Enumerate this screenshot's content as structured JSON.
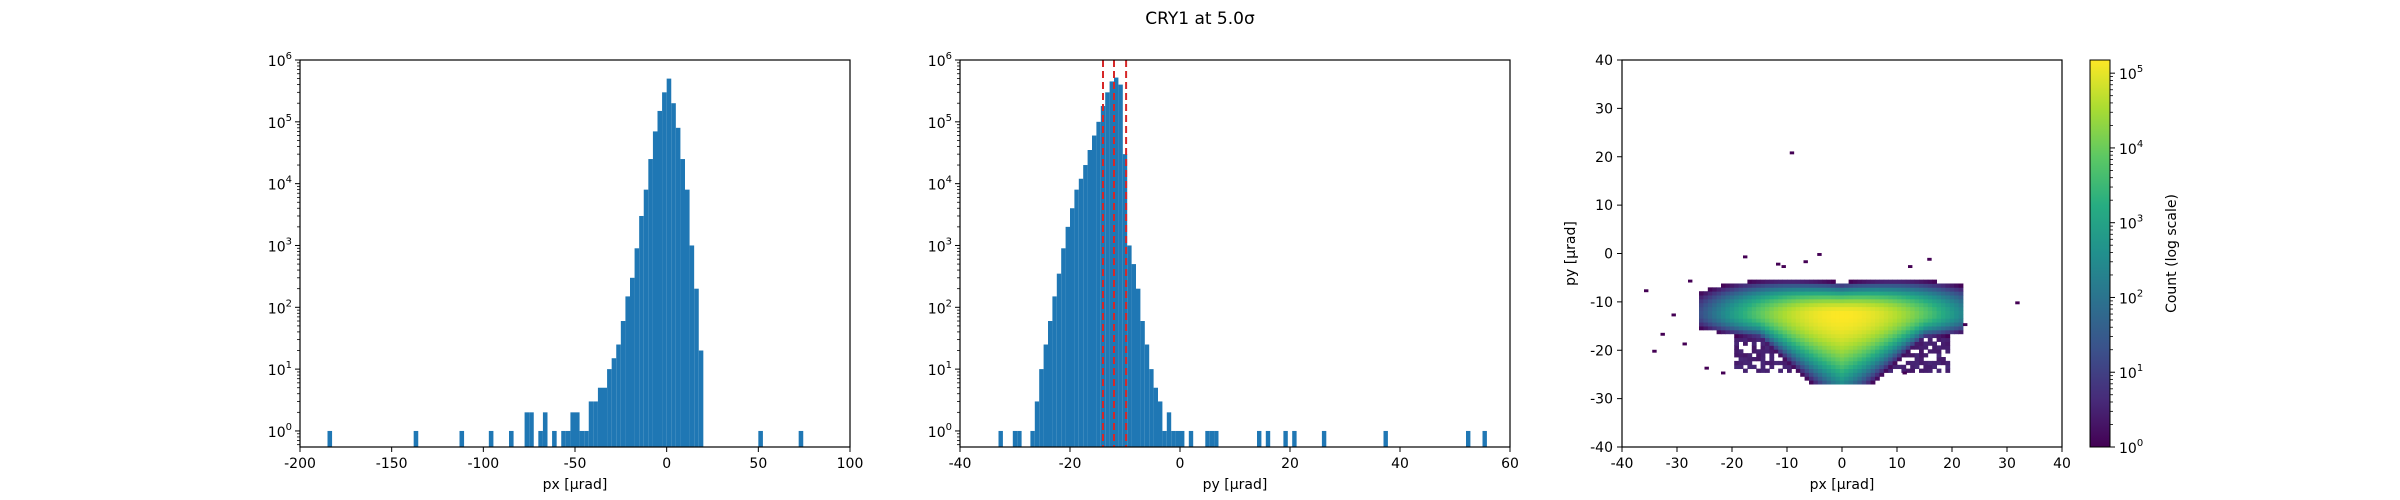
{
  "figure": {
    "title": "CRY1 at 5.0σ",
    "colors": {
      "bar": "#1f77b4",
      "cut_line": "#d62728"
    }
  },
  "chart_data": [
    {
      "type": "bar",
      "name": "px histogram",
      "xlabel": "px [μrad]",
      "ylabel": "",
      "xlim": [
        -200,
        100
      ],
      "ylim": [
        0.55,
        1000000
      ],
      "yscale": "log",
      "xticks": [
        -200,
        -150,
        -100,
        -50,
        0,
        50,
        100
      ],
      "xtick_labels": [
        "-200",
        "-150",
        "-100",
        "-50",
        "0",
        "50",
        "100"
      ],
      "yticks": [
        1,
        10,
        100,
        1000,
        10000,
        100000,
        1000000
      ],
      "ytick_labels": [
        "10",
        "10",
        "10",
        "10",
        "10",
        "10",
        "10"
      ],
      "ytick_exponents": [
        "0",
        "1",
        "2",
        "3",
        "4",
        "5",
        "6"
      ],
      "bin_width": 2.5,
      "bins": [
        [
          -185,
          1
        ],
        [
          -138,
          1
        ],
        [
          -113,
          1
        ],
        [
          -97,
          1
        ],
        [
          -86,
          1
        ],
        [
          -77.5,
          2
        ],
        [
          -75,
          2
        ],
        [
          -70,
          1
        ],
        [
          -67.5,
          2
        ],
        [
          -62.5,
          1
        ],
        [
          -57.5,
          1
        ],
        [
          -55,
          1
        ],
        [
          -52.5,
          2
        ],
        [
          -50,
          2
        ],
        [
          -47.5,
          1
        ],
        [
          -45,
          1
        ],
        [
          -42.5,
          3
        ],
        [
          -40,
          3
        ],
        [
          -37.5,
          5
        ],
        [
          -35,
          5
        ],
        [
          -32.5,
          10
        ],
        [
          -30,
          15
        ],
        [
          -27.5,
          25
        ],
        [
          -25,
          60
        ],
        [
          -22.5,
          150
        ],
        [
          -20,
          300
        ],
        [
          -17.5,
          900
        ],
        [
          -15,
          3000
        ],
        [
          -12.5,
          8000
        ],
        [
          -10,
          25000
        ],
        [
          -7.5,
          70000
        ],
        [
          -5,
          150000
        ],
        [
          -2.5,
          300000
        ],
        [
          0,
          500000
        ],
        [
          2.5,
          200000
        ],
        [
          5,
          80000
        ],
        [
          7.5,
          25000
        ],
        [
          10,
          8000
        ],
        [
          12.5,
          1000
        ],
        [
          15,
          200
        ],
        [
          17.5,
          20
        ],
        [
          50,
          1
        ],
        [
          72,
          1
        ]
      ]
    },
    {
      "type": "bar",
      "name": "py histogram",
      "xlabel": "py [μrad]",
      "ylabel": "",
      "xlim": [
        -40,
        60
      ],
      "ylim": [
        0.55,
        1000000
      ],
      "yscale": "log",
      "xticks": [
        -40,
        -20,
        0,
        20,
        40,
        60
      ],
      "xtick_labels": [
        "-40",
        "-20",
        "0",
        "20",
        "40",
        "60"
      ],
      "yticks": [
        1,
        10,
        100,
        1000,
        10000,
        100000,
        1000000
      ],
      "ytick_labels": [
        "10",
        "10",
        "10",
        "10",
        "10",
        "10",
        "10"
      ],
      "ytick_exponents": [
        "0",
        "1",
        "2",
        "3",
        "4",
        "5",
        "6"
      ],
      "bin_width": 0.8,
      "bins": [
        [
          -33,
          1
        ],
        [
          -30.4,
          1
        ],
        [
          -29.6,
          1
        ],
        [
          -27.2,
          1
        ],
        [
          -26.4,
          3
        ],
        [
          -25.6,
          10
        ],
        [
          -24.8,
          25
        ],
        [
          -24,
          60
        ],
        [
          -23.2,
          150
        ],
        [
          -22.4,
          350
        ],
        [
          -21.6,
          900
        ],
        [
          -20.8,
          2000
        ],
        [
          -20,
          4000
        ],
        [
          -19.2,
          8000
        ],
        [
          -18.4,
          12000
        ],
        [
          -17.6,
          20000
        ],
        [
          -16.8,
          35000
        ],
        [
          -16,
          60000
        ],
        [
          -15.2,
          100000
        ],
        [
          -14.4,
          180000
        ],
        [
          -13.6,
          300000
        ],
        [
          -12.8,
          450000
        ],
        [
          -12,
          520000
        ],
        [
          -11.2,
          400000
        ],
        [
          -10.4,
          30000
        ],
        [
          -9.6,
          1000
        ],
        [
          -8.8,
          500
        ],
        [
          -8,
          200
        ],
        [
          -7.2,
          60
        ],
        [
          -6.4,
          25
        ],
        [
          -5.6,
          10
        ],
        [
          -4.8,
          5
        ],
        [
          -4,
          3
        ],
        [
          -3.2,
          1
        ],
        [
          -2.4,
          2
        ],
        [
          -1.6,
          1
        ],
        [
          -0.8,
          1
        ],
        [
          0,
          1
        ],
        [
          1.6,
          1
        ],
        [
          4.6,
          1
        ],
        [
          5.4,
          1
        ],
        [
          6.2,
          1
        ],
        [
          14,
          1
        ],
        [
          15.6,
          1
        ],
        [
          18.8,
          1
        ],
        [
          20.4,
          1
        ],
        [
          25.8,
          1
        ],
        [
          37,
          1
        ],
        [
          52,
          1
        ],
        [
          55,
          1
        ]
      ],
      "vlines": [
        -14,
        -12,
        -9.8
      ]
    },
    {
      "type": "heatmap",
      "name": "px-py 2D histogram",
      "xlabel": "px [μrad]",
      "ylabel": "py [μrad]",
      "xlim": [
        -40,
        40
      ],
      "ylim": [
        -40,
        40
      ],
      "xticks": [
        -40,
        -30,
        -20,
        -10,
        0,
        10,
        20,
        30,
        40
      ],
      "xtick_labels": [
        "-40",
        "-30",
        "-20",
        "-10",
        "0",
        "10",
        "20",
        "30",
        "40"
      ],
      "yticks": [
        -40,
        -30,
        -20,
        -10,
        0,
        10,
        20,
        30,
        40
      ],
      "ytick_labels": [
        "-40",
        "-30",
        "-20",
        "-10",
        "0",
        "10",
        "20",
        "30",
        "40"
      ],
      "core_center": [
        0,
        -12.5
      ],
      "core_peak_count": 150000,
      "outliers": [
        [
          -9.5,
          20.5
        ],
        [
          31.5,
          -10.5
        ],
        [
          -34.5,
          -20.5
        ],
        [
          -36,
          -8
        ],
        [
          -18,
          -1
        ],
        [
          -11,
          -3
        ],
        [
          -7,
          -2
        ],
        [
          -4.5,
          -0.5
        ],
        [
          15.5,
          -1.5
        ],
        [
          12,
          -3
        ],
        [
          -28,
          -6
        ],
        [
          -31,
          -13
        ],
        [
          -33,
          -17
        ],
        [
          -25,
          -24
        ],
        [
          -22,
          -25
        ],
        [
          -12,
          -2.5
        ],
        [
          11,
          -25
        ],
        [
          22,
          -15
        ],
        [
          -29,
          -19
        ]
      ],
      "colorbar": {
        "label": "Count (log scale)",
        "scale": "log",
        "range": [
          1,
          150000
        ],
        "ticks": [
          1,
          10,
          100,
          1000,
          10000,
          100000
        ],
        "tick_labels": [
          "10",
          "10",
          "10",
          "10",
          "10",
          "10"
        ],
        "tick_exponents": [
          "0",
          "1",
          "2",
          "3",
          "4",
          "5"
        ],
        "colormap": "viridis"
      }
    }
  ]
}
